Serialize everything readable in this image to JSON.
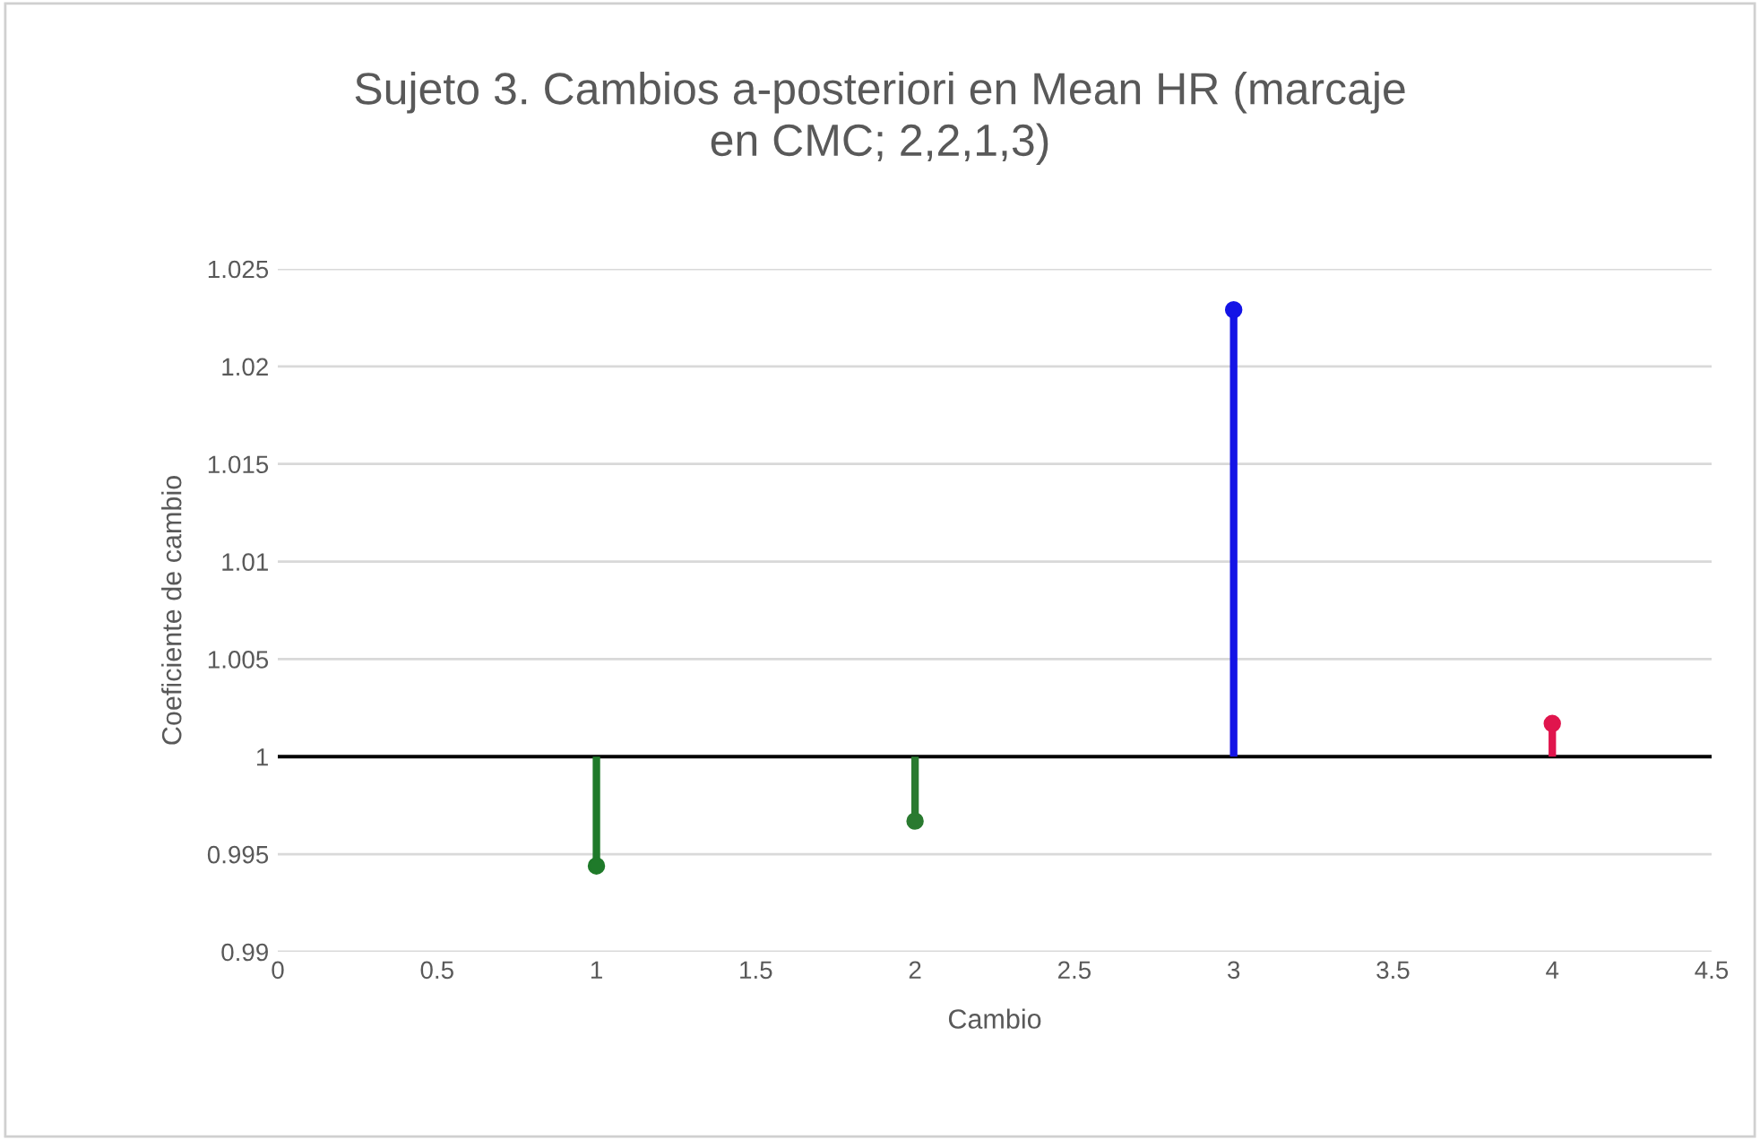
{
  "chart_data": {
    "type": "scatter",
    "title": "Sujeto 3. Cambios a-posteriori en Mean HR (marcaje\nen CMC; 2,2,1,3)",
    "xlabel": "Cambio",
    "ylabel": "Coeficiente de cambio",
    "x": [
      1,
      2,
      3,
      4
    ],
    "values": [
      0.9944,
      0.9967,
      1.0229,
      1.0017
    ],
    "errors": [
      [
        0.9944,
        1
      ],
      [
        0.9967,
        1
      ],
      [
        1,
        1.0229
      ],
      [
        1,
        1.0017
      ]
    ],
    "colors": [
      "#1f7a2a",
      "#2a7a30",
      "#1414e6",
      "#e0154d"
    ],
    "xlim": [
      0,
      4.5
    ],
    "xticks": [
      0,
      0.5,
      1,
      1.5,
      2,
      2.5,
      3,
      3.5,
      4,
      4.5
    ],
    "ylim": [
      0.99,
      1.025
    ],
    "yticks": [
      0.99,
      0.995,
      1,
      1.005,
      1.01,
      1.015,
      1.02,
      1.025
    ],
    "ref_lines": [
      {
        "axis": "y",
        "value": 1,
        "color": "#000000"
      }
    ],
    "grid": "y",
    "marker": "circle"
  }
}
